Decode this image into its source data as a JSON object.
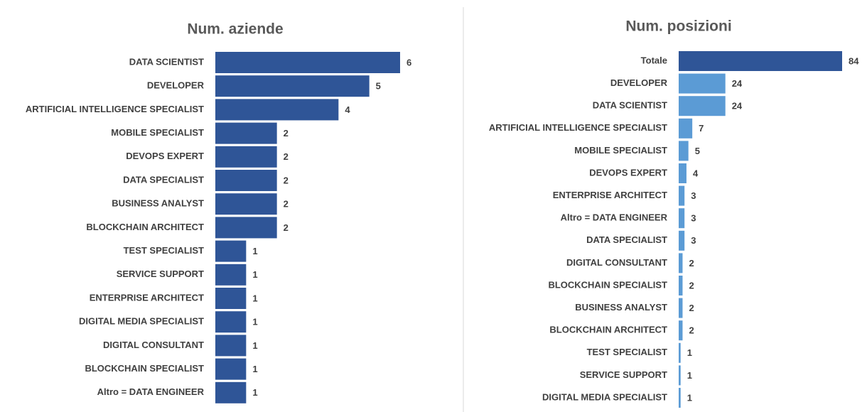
{
  "chart_data": [
    {
      "type": "bar",
      "orientation": "horizontal",
      "title": "Num. aziende",
      "color": "#2f5597",
      "categories": [
        "DATA SCIENTIST",
        "DEVELOPER",
        "ARTIFICIAL INTELLIGENCE SPECIALIST",
        "MOBILE SPECIALIST",
        "DEVOPS EXPERT",
        "DATA SPECIALIST",
        "BUSINESS ANALYST",
        "BLOCKCHAIN ARCHITECT",
        "TEST SPECIALIST",
        "SERVICE SUPPORT",
        "ENTERPRISE ARCHITECT",
        "DIGITAL MEDIA SPECIALIST",
        "DIGITAL CONSULTANT",
        "BLOCKCHAIN SPECIALIST",
        "Altro = DATA ENGINEER"
      ],
      "values": [
        6,
        5,
        4,
        2,
        2,
        2,
        2,
        2,
        1,
        1,
        1,
        1,
        1,
        1,
        1
      ]
    },
    {
      "type": "bar",
      "orientation": "horizontal",
      "title": "Num. posizioni",
      "categories": [
        "Totale",
        "DEVELOPER",
        "DATA SCIENTIST",
        "ARTIFICIAL INTELLIGENCE SPECIALIST",
        "MOBILE SPECIALIST",
        "DEVOPS EXPERT",
        "ENTERPRISE ARCHITECT",
        "Altro = DATA ENGINEER",
        "DATA SPECIALIST",
        "DIGITAL CONSULTANT",
        "BLOCKCHAIN SPECIALIST",
        "BUSINESS ANALYST",
        "BLOCKCHAIN ARCHITECT",
        "TEST SPECIALIST",
        "SERVICE SUPPORT",
        "DIGITAL MEDIA SPECIALIST"
      ],
      "values": [
        84,
        24,
        24,
        7,
        5,
        4,
        3,
        3,
        3,
        2,
        2,
        2,
        2,
        1,
        1,
        1
      ],
      "colors": [
        "#2f5597",
        "#5b9bd5",
        "#5b9bd5",
        "#5b9bd5",
        "#5b9bd5",
        "#5b9bd5",
        "#5b9bd5",
        "#5b9bd5",
        "#5b9bd5",
        "#5b9bd5",
        "#5b9bd5",
        "#5b9bd5",
        "#5b9bd5",
        "#5b9bd5",
        "#5b9bd5",
        "#5b9bd5"
      ]
    }
  ]
}
